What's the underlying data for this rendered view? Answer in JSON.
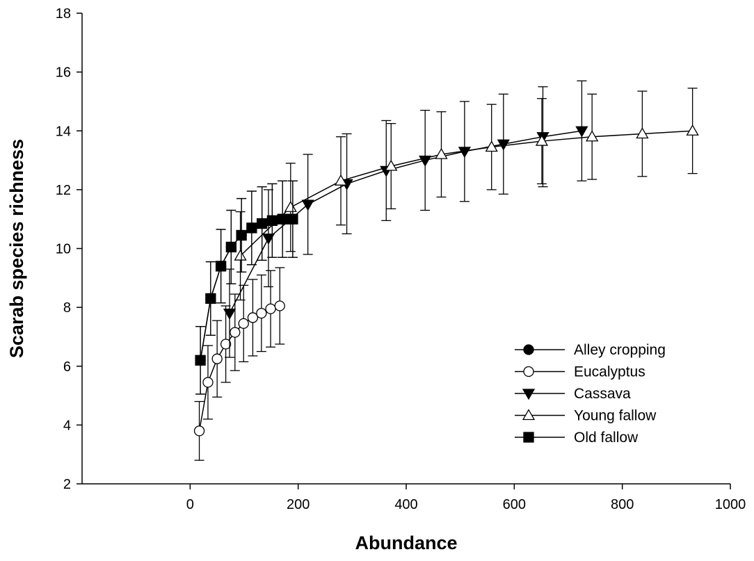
{
  "chart_data": {
    "type": "line",
    "title": "",
    "xlabel": "Abundance",
    "ylabel": "Scarab species richness",
    "xlim": [
      -200,
      1000
    ],
    "ylim": [
      2,
      18
    ],
    "xticks": [
      0,
      200,
      400,
      600,
      800,
      1000
    ],
    "yticks": [
      2,
      4,
      6,
      8,
      10,
      12,
      14,
      16,
      18
    ],
    "xtick_labels": [
      "0",
      "200",
      "400",
      "600",
      "800",
      "1000"
    ],
    "ytick_labels": [
      "2",
      "4",
      "6",
      "8",
      "10",
      "12",
      "14",
      "16",
      "18"
    ],
    "grid": false,
    "legend_position": "bottom-right",
    "series": [
      {
        "name": "Alley cropping",
        "marker": "circle",
        "fill": "#000000",
        "x": [
          19,
          38,
          57,
          76,
          95,
          114,
          133,
          152,
          171,
          190
        ],
        "y": [
          6.2,
          8.3,
          9.4,
          10.05,
          10.45,
          10.7,
          10.85,
          10.95,
          11.0,
          11.0
        ],
        "err": [
          1.15,
          1.25,
          1.25,
          1.25,
          1.25,
          1.25,
          1.25,
          1.25,
          1.3,
          1.3
        ]
      },
      {
        "name": "Eucalyptus",
        "marker": "circle",
        "fill": "#ffffff",
        "x": [
          17,
          33,
          50,
          66,
          83,
          99,
          116,
          132,
          149,
          166
        ],
        "y": [
          3.8,
          5.45,
          6.25,
          6.75,
          7.15,
          7.45,
          7.65,
          7.8,
          7.95,
          8.05
        ],
        "err": [
          1.0,
          1.25,
          1.3,
          1.3,
          1.3,
          1.3,
          1.3,
          1.3,
          1.3,
          1.3
        ]
      },
      {
        "name": "Cassava",
        "marker": "triangle-down",
        "fill": "#000000",
        "x": [
          73,
          145,
          218,
          290,
          363,
          435,
          508,
          580,
          653,
          725
        ],
        "y": [
          7.8,
          10.35,
          11.5,
          12.2,
          12.65,
          13.0,
          13.3,
          13.55,
          13.8,
          14.0
        ],
        "err": [
          1.5,
          1.65,
          1.7,
          1.7,
          1.7,
          1.7,
          1.7,
          1.7,
          1.7,
          1.7
        ]
      },
      {
        "name": "Young fallow",
        "marker": "triangle-up",
        "fill": "#ffffff",
        "x": [
          93,
          186,
          279,
          372,
          465,
          558,
          651,
          744,
          837,
          930
        ],
        "y": [
          9.75,
          11.4,
          12.3,
          12.8,
          13.2,
          13.45,
          13.65,
          13.8,
          13.9,
          14.0
        ],
        "err": [
          1.5,
          1.5,
          1.5,
          1.45,
          1.45,
          1.45,
          1.45,
          1.45,
          1.45,
          1.45
        ]
      },
      {
        "name": "Old fallow",
        "marker": "square",
        "fill": "#000000",
        "x": [
          19,
          38,
          57,
          76,
          95,
          114,
          133,
          152,
          171,
          190
        ],
        "y": [
          6.2,
          8.3,
          9.4,
          10.05,
          10.45,
          10.7,
          10.85,
          10.95,
          11.0,
          11.0
        ],
        "err": [
          1.15,
          1.25,
          1.25,
          1.25,
          1.25,
          1.25,
          1.25,
          1.25,
          1.3,
          1.3
        ]
      }
    ]
  }
}
